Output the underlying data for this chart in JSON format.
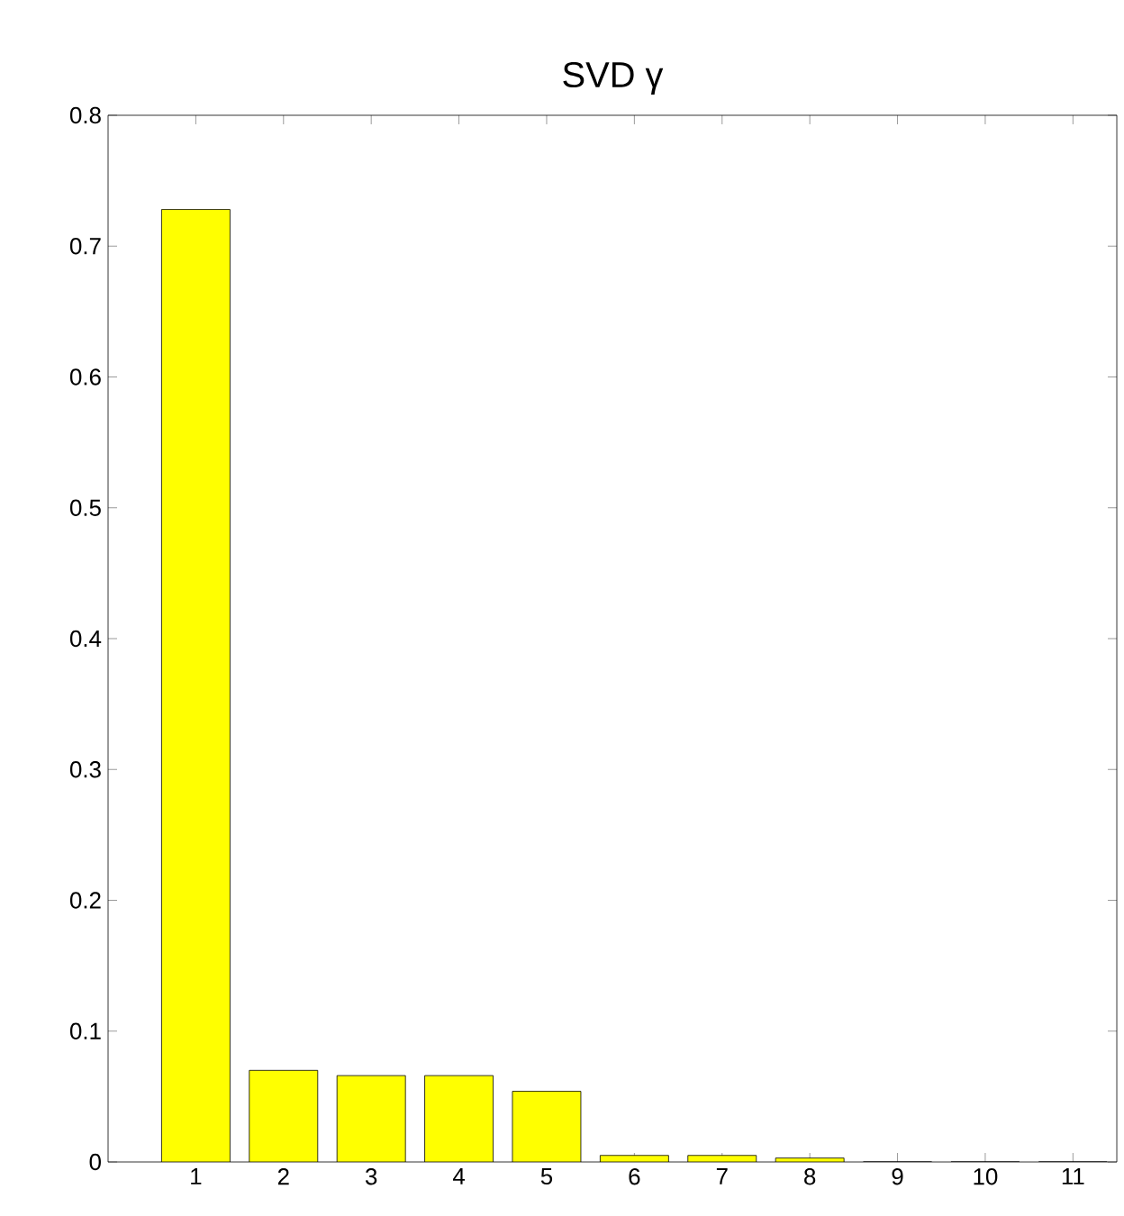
{
  "chart_data": {
    "type": "bar",
    "title": "SVD γ",
    "categories": [
      "1",
      "2",
      "3",
      "4",
      "5",
      "6",
      "7",
      "8",
      "9",
      "10",
      "11"
    ],
    "values": [
      0.728,
      0.07,
      0.066,
      0.066,
      0.054,
      0.005,
      0.005,
      0.003,
      0,
      0,
      0
    ],
    "color": "#ffff00",
    "ylim": [
      0,
      0.8
    ],
    "yticks": [
      0,
      0.1,
      0.2,
      0.3,
      0.4,
      0.5,
      0.6,
      0.7,
      0.8
    ],
    "grid": false
  }
}
